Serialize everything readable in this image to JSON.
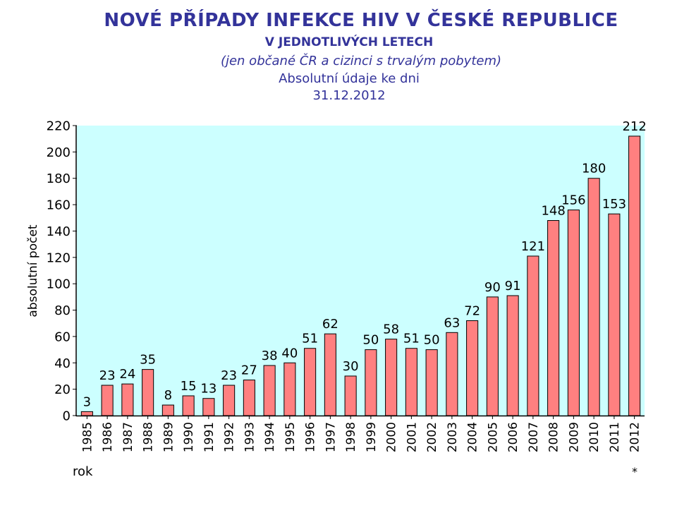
{
  "header": {
    "title": "NOVÉ PŘÍPADY INFEKCE HIV V ČESKÉ REPUBLICE",
    "subtitle": "V JEDNOTLIVÝCH LETECH",
    "note": "(jen občané ČR a cizinci s trvalým pobytem)",
    "data_type": "Absolutní údaje ke dni",
    "date": "31.12.2012"
  },
  "chart_data": {
    "type": "bar",
    "title": "NOVÉ PŘÍPADY INFEKCE HIV V ČESKÉ REPUBLICE",
    "xlabel": "rok",
    "ylabel": "absolutní počet",
    "ylim": [
      0,
      220
    ],
    "yticks": [
      0,
      20,
      40,
      60,
      80,
      100,
      120,
      140,
      160,
      180,
      200,
      220
    ],
    "categories": [
      "1985",
      "1986",
      "1987",
      "1988",
      "1989",
      "1990",
      "1991",
      "1992",
      "1993",
      "1994",
      "1995",
      "1996",
      "1997",
      "1998",
      "1999",
      "2000",
      "2001",
      "2002",
      "2003",
      "2004",
      "2005",
      "2006",
      "2007",
      "2008",
      "2009",
      "2010",
      "2011",
      "2012"
    ],
    "values": [
      3,
      23,
      24,
      35,
      8,
      15,
      13,
      23,
      27,
      38,
      40,
      51,
      62,
      30,
      50,
      58,
      51,
      50,
      63,
      72,
      90,
      91,
      121,
      148,
      156,
      180,
      153,
      212
    ],
    "footnote": "*",
    "colors": {
      "bar": "#ff8080",
      "bar_edge": "#000000",
      "plot_bg": "#ccffff",
      "title": "#33339a"
    }
  }
}
